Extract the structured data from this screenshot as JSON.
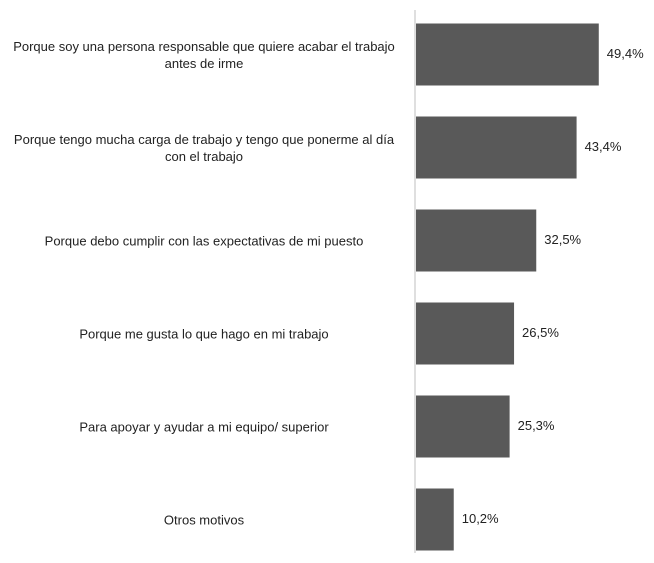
{
  "chart_data": {
    "type": "bar",
    "orientation": "horizontal",
    "categories": [
      "Porque soy una persona responsable que quiere acabar el trabajo antes de irme",
      "Porque tengo mucha carga de trabajo y tengo que ponerme al día con el trabajo",
      "Porque debo cumplir con las expectativas de mi puesto",
      "Porque me gusta lo que hago en mi trabajo",
      "Para apoyar y ayudar a mi equipo/ superior",
      "Otros motivos"
    ],
    "values": [
      49.4,
      43.4,
      32.5,
      26.5,
      25.3,
      10.2
    ],
    "value_labels": [
      "49,4%",
      "43,4%",
      "32,5%",
      "26,5%",
      "25,3%",
      "10,2%"
    ],
    "color": "#595959"
  }
}
